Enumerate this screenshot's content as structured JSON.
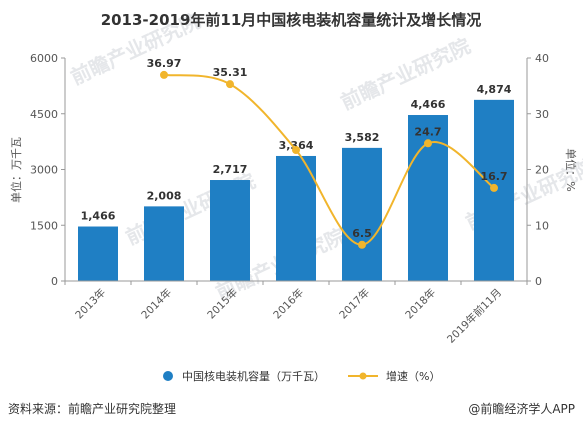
{
  "chart_data": {
    "type": "bar",
    "title": "2013-2019年前11月中国核电装机容量统计及增长情况",
    "categories": [
      "2013年",
      "2014年",
      "2015年",
      "2016年",
      "2017年",
      "2018年",
      "2019年前11月"
    ],
    "series": [
      {
        "name": "中国核电装机容量（万千瓦）",
        "type": "bar",
        "axis": "left",
        "color": "#1f7fc4",
        "values": [
          1466,
          2008,
          2717,
          3364,
          3582,
          4466,
          4874
        ],
        "labels": [
          "1,466",
          "2,008",
          "2,717",
          "3,364",
          "3,582",
          "4,466",
          "4,874"
        ]
      },
      {
        "name": "增速（%）",
        "type": "line",
        "axis": "right",
        "color": "#f1b52c",
        "values": [
          null,
          36.97,
          35.31,
          23.5,
          6.5,
          24.7,
          16.7
        ],
        "labels": [
          "",
          "36.97",
          "35.31",
          "",
          "6.5",
          "24.7",
          "16.7"
        ]
      }
    ],
    "y_left": {
      "label": "单位：万千瓦",
      "ylim": [
        0,
        6000
      ],
      "ticks": [
        "0",
        "1500",
        "3000",
        "4500",
        "6000"
      ]
    },
    "y_right": {
      "label": "单位：%",
      "ylim": [
        0,
        40
      ],
      "ticks": [
        "0",
        "10",
        "20",
        "30",
        "40"
      ]
    },
    "grid": false,
    "legend": "bottom"
  },
  "footer": {
    "source": "资料来源：前瞻产业研究院整理",
    "brand": "@前瞻经济学人APP"
  },
  "watermark": "前瞻产业研究院"
}
